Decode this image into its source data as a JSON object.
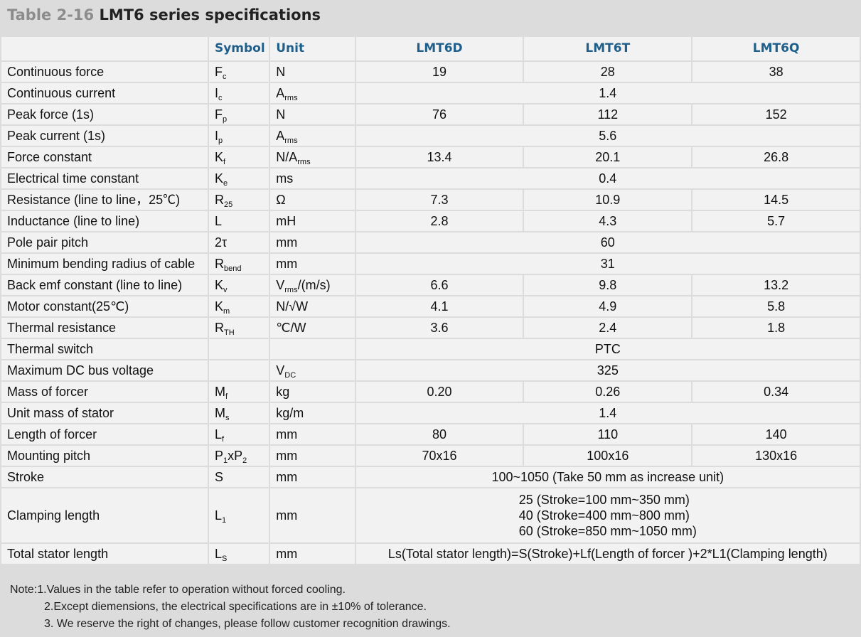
{
  "title": {
    "prefix": "Table 2-16",
    "main": "LMT6 series specifications"
  },
  "header": {
    "param": "",
    "symbol": "Symbol",
    "unit": "Unit",
    "models": [
      "LMT6D",
      "LMT6T",
      "LMT6Q"
    ]
  },
  "rows": [
    {
      "param": "Continuous force",
      "sym": "F",
      "sub": "c",
      "unit": "N",
      "unit_sub": "",
      "unit_tail": "",
      "values": [
        "19",
        "28",
        "38"
      ]
    },
    {
      "param": "Continuous current",
      "sym": "I",
      "sub": "c",
      "unit": "A",
      "unit_sub": "rms",
      "unit_tail": "",
      "merged": "1.4"
    },
    {
      "param": "Peak force (1s)",
      "sym": "F",
      "sub": "p",
      "unit": "N",
      "unit_sub": "",
      "unit_tail": "",
      "values": [
        "76",
        "112",
        "152"
      ]
    },
    {
      "param": "Peak current (1s)",
      "sym": "I",
      "sub": "p",
      "unit": "A",
      "unit_sub": "rms",
      "unit_tail": "",
      "merged": "5.6"
    },
    {
      "param": "Force constant",
      "sym": "K",
      "sub": "f",
      "unit": "N/A",
      "unit_sub": "rms",
      "unit_tail": "",
      "values": [
        "13.4",
        "20.1",
        "26.8"
      ]
    },
    {
      "param": "Electrical time constant",
      "sym": "K",
      "sub": "e",
      "unit": "ms",
      "unit_sub": "",
      "unit_tail": "",
      "merged": "0.4"
    },
    {
      "param": "Resistance (line to line，25℃)",
      "sym": "R",
      "sub": "25",
      "unit": "Ω",
      "unit_sub": "",
      "unit_tail": "",
      "values": [
        "7.3",
        "10.9",
        "14.5"
      ]
    },
    {
      "param": "Inductance (line to line)",
      "sym": "L",
      "sub": "",
      "unit": "mH",
      "unit_sub": "",
      "unit_tail": "",
      "values": [
        "2.8",
        "4.3",
        "5.7"
      ]
    },
    {
      "param": "Pole pair pitch",
      "sym": "2τ",
      "sub": "",
      "unit": "mm",
      "unit_sub": "",
      "unit_tail": "",
      "merged": "60"
    },
    {
      "param": "Minimum bending radius of cable",
      "sym": "R",
      "sub": "bend",
      "unit": "mm",
      "unit_sub": "",
      "unit_tail": "",
      "merged": "31"
    },
    {
      "param": "Back emf constant (line to line)",
      "sym": "K",
      "sub": "v",
      "unit": "V",
      "unit_sub": "rms",
      "unit_tail": "/(m/s)",
      "values": [
        "6.6",
        "9.8",
        "13.2"
      ]
    },
    {
      "param": "Motor constant(25℃)",
      "sym": "K",
      "sub": "m",
      "unit": "N/√W",
      "unit_sub": "",
      "unit_tail": "",
      "values": [
        "4.1",
        "4.9",
        "5.8"
      ]
    },
    {
      "param": "Thermal resistance",
      "sym": "R",
      "sub": "TH",
      "unit": "℃/W",
      "unit_sub": "",
      "unit_tail": "",
      "values": [
        "3.6",
        "2.4",
        "1.8"
      ]
    },
    {
      "param": "Thermal switch",
      "sym": "",
      "sub": "",
      "unit": "",
      "unit_sub": "",
      "unit_tail": "",
      "merged": "PTC"
    },
    {
      "param": "Maximum DC bus voltage",
      "sym": "",
      "sub": "",
      "unit": "V",
      "unit_sub": "DC",
      "unit_tail": "",
      "merged": "325"
    },
    {
      "param": "Mass of forcer",
      "sym": "M",
      "sub": "f",
      "unit": "kg",
      "unit_sub": "",
      "unit_tail": "",
      "values": [
        "0.20",
        "0.26",
        "0.34"
      ]
    },
    {
      "param": "Unit mass of stator",
      "sym": "M",
      "sub": "s",
      "unit": "kg/m",
      "unit_sub": "",
      "unit_tail": "",
      "merged": "1.4"
    },
    {
      "param": "Length of forcer",
      "sym": "L",
      "sub": "f",
      "unit": "mm",
      "unit_sub": "",
      "unit_tail": "",
      "values": [
        "80",
        "110",
        "140"
      ]
    },
    {
      "param": "Mounting pitch",
      "sym": "P",
      "sub": "1",
      "sym_tail": "xP",
      "sub2": "2",
      "unit": "mm",
      "unit_sub": "",
      "unit_tail": "",
      "values": [
        "70x16",
        "100x16",
        "130x16"
      ]
    },
    {
      "param": "Stroke",
      "sym": "S",
      "sub": "",
      "unit": "mm",
      "unit_sub": "",
      "unit_tail": "",
      "merged": "100~1050 (Take 50 mm as increase unit)"
    }
  ],
  "clamping": {
    "param": "Clamping length",
    "sym": "L",
    "sub": "1",
    "unit": "mm",
    "lines": [
      "25 (Stroke=100 mm~350 mm)",
      "40 (Stroke=400 mm~800 mm)",
      "60 (Stroke=850 mm~1050 mm)"
    ]
  },
  "total": {
    "param": "Total stator length",
    "sym": "L",
    "sub": "S",
    "unit": "mm",
    "value": "Ls(Total stator length)=S(Stroke)+Lf(Length of forcer )+2*L1(Clamping length)"
  },
  "notes": [
    "Note:1.Values in the table refer to operation without forced cooling.",
    "2.Except diemensions, the electrical specifications are in ±10% of tolerance.",
    "3. We reserve the right of changes, please follow customer recognition drawings."
  ]
}
